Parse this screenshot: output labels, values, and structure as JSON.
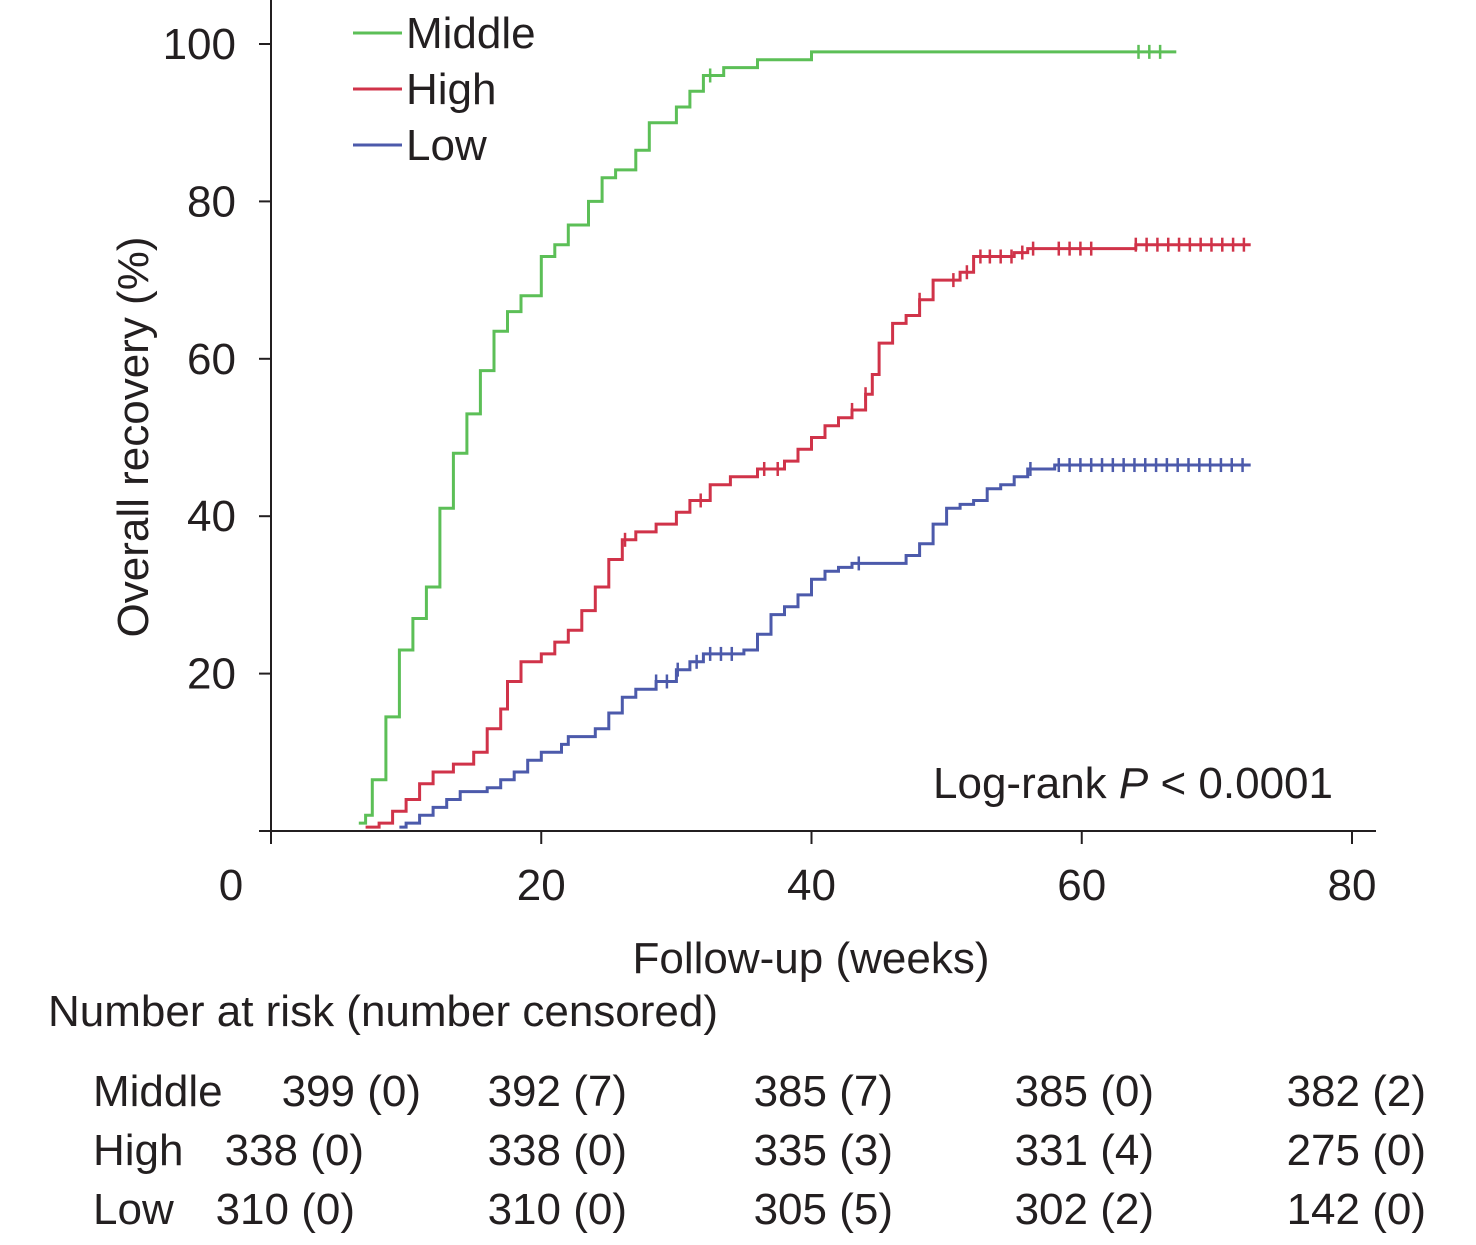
{
  "chart_data": {
    "type": "line",
    "step": true,
    "title": "",
    "xlabel": "Follow-up (weeks)",
    "ylabel": "Overall recovery (%)",
    "xlim": [
      0,
      80
    ],
    "ylim": [
      0,
      100
    ],
    "xticks": [
      "0",
      "20",
      "40",
      "60",
      "80"
    ],
    "yticks": [
      "20",
      "40",
      "60",
      "80",
      "100"
    ],
    "legend_position": "top-left",
    "grid": false,
    "annotation": {
      "prefix": "Log-rank ",
      "p_symbol": "P",
      "suffix": " < 0.0001"
    },
    "series": [
      {
        "name": "Middle",
        "color": "#5cbf57",
        "points": [
          [
            6.5,
            1
          ],
          [
            7,
            1
          ],
          [
            7,
            2
          ],
          [
            7.5,
            2
          ],
          [
            7.5,
            6.5
          ],
          [
            8.5,
            6.5
          ],
          [
            8.5,
            14.5
          ],
          [
            9.5,
            14.5
          ],
          [
            9.5,
            23
          ],
          [
            10.5,
            23
          ],
          [
            10.5,
            27
          ],
          [
            11.5,
            27
          ],
          [
            11.5,
            31
          ],
          [
            12.5,
            31
          ],
          [
            12.5,
            41
          ],
          [
            13.5,
            41
          ],
          [
            13.5,
            48
          ],
          [
            14.5,
            48
          ],
          [
            14.5,
            53
          ],
          [
            15.5,
            53
          ],
          [
            15.5,
            58.5
          ],
          [
            16.5,
            58.5
          ],
          [
            16.5,
            63.5
          ],
          [
            17.5,
            63.5
          ],
          [
            17.5,
            66
          ],
          [
            18.5,
            66
          ],
          [
            18.5,
            68
          ],
          [
            20,
            68
          ],
          [
            20,
            73
          ],
          [
            21,
            73
          ],
          [
            21,
            74.5
          ],
          [
            22,
            74.5
          ],
          [
            22,
            77
          ],
          [
            23.5,
            77
          ],
          [
            23.5,
            80
          ],
          [
            24.5,
            80
          ],
          [
            24.5,
            83
          ],
          [
            25.5,
            83
          ],
          [
            25.5,
            84
          ],
          [
            27,
            84
          ],
          [
            27,
            86.5
          ],
          [
            28,
            86.5
          ],
          [
            28,
            90
          ],
          [
            30,
            90
          ],
          [
            30,
            92
          ],
          [
            31,
            92
          ],
          [
            31,
            94
          ],
          [
            32,
            94
          ],
          [
            32,
            96
          ],
          [
            33.5,
            96
          ],
          [
            33.5,
            97
          ],
          [
            36,
            97
          ],
          [
            36,
            98
          ],
          [
            40,
            98
          ],
          [
            40,
            99
          ],
          [
            67,
            99
          ]
        ],
        "censored_x": [
          32.5,
          64.2,
          65.0,
          65.8
        ]
      },
      {
        "name": "High",
        "color": "#d03349",
        "points": [
          [
            7,
            0.5
          ],
          [
            8,
            0.5
          ],
          [
            8,
            1
          ],
          [
            9,
            1
          ],
          [
            9,
            2.5
          ],
          [
            10,
            2.5
          ],
          [
            10,
            4
          ],
          [
            11,
            4
          ],
          [
            11,
            6
          ],
          [
            12,
            6
          ],
          [
            12,
            7.5
          ],
          [
            13.5,
            7.5
          ],
          [
            13.5,
            8.5
          ],
          [
            15,
            8.5
          ],
          [
            15,
            10
          ],
          [
            16,
            10
          ],
          [
            16,
            13
          ],
          [
            17,
            13
          ],
          [
            17,
            15.5
          ],
          [
            17.5,
            15.5
          ],
          [
            17.5,
            19
          ],
          [
            18.5,
            19
          ],
          [
            18.5,
            21.5
          ],
          [
            20,
            21.5
          ],
          [
            20,
            22.5
          ],
          [
            21,
            22.5
          ],
          [
            21,
            24
          ],
          [
            22,
            24
          ],
          [
            22,
            25.5
          ],
          [
            23,
            25.5
          ],
          [
            23,
            28
          ],
          [
            24,
            28
          ],
          [
            24,
            31
          ],
          [
            25,
            31
          ],
          [
            25,
            34.5
          ],
          [
            26,
            34.5
          ],
          [
            26,
            37
          ],
          [
            27,
            37
          ],
          [
            27,
            38
          ],
          [
            28.5,
            38
          ],
          [
            28.5,
            39
          ],
          [
            30,
            39
          ],
          [
            30,
            40.5
          ],
          [
            31,
            40.5
          ],
          [
            31,
            42
          ],
          [
            32.5,
            42
          ],
          [
            32.5,
            44
          ],
          [
            34,
            44
          ],
          [
            34,
            45
          ],
          [
            36,
            45
          ],
          [
            36,
            46
          ],
          [
            38,
            46
          ],
          [
            38,
            47
          ],
          [
            39,
            47
          ],
          [
            39,
            48.5
          ],
          [
            40,
            48.5
          ],
          [
            40,
            50
          ],
          [
            41,
            50
          ],
          [
            41,
            51.5
          ],
          [
            42,
            51.5
          ],
          [
            42,
            52.5
          ],
          [
            43,
            52.5
          ],
          [
            43,
            53.5
          ],
          [
            44,
            53.5
          ],
          [
            44,
            55.5
          ],
          [
            44.5,
            55.5
          ],
          [
            44.5,
            58
          ],
          [
            45,
            58
          ],
          [
            45,
            62
          ],
          [
            46,
            62
          ],
          [
            46,
            64.5
          ],
          [
            47,
            64.5
          ],
          [
            47,
            65.5
          ],
          [
            48,
            65.5
          ],
          [
            48,
            67.5
          ],
          [
            49,
            67.5
          ],
          [
            49,
            70
          ],
          [
            51,
            70
          ],
          [
            51,
            71
          ],
          [
            52,
            71
          ],
          [
            52,
            73
          ],
          [
            55,
            73
          ],
          [
            55,
            73.5
          ],
          [
            56,
            73.5
          ],
          [
            56,
            74
          ],
          [
            64,
            74
          ],
          [
            64,
            74.5
          ],
          [
            72.5,
            74.5
          ]
        ],
        "censored_x": [
          26.2,
          31.8,
          36.5,
          37.5,
          43.0,
          44.0,
          48.0,
          50.5,
          51.5,
          52.5,
          53.2,
          54.0,
          54.8,
          55.6,
          56.4,
          58.3,
          59.1,
          59.9,
          60.7,
          64.0,
          64.8,
          65.6,
          66.4,
          67.2,
          68.0,
          68.8,
          69.6,
          70.4,
          71.2,
          72.0
        ]
      },
      {
        "name": "Low",
        "color": "#4c5aab",
        "points": [
          [
            9.5,
            0.5
          ],
          [
            10,
            0.5
          ],
          [
            10,
            1
          ],
          [
            11,
            1
          ],
          [
            11,
            2
          ],
          [
            12,
            2
          ],
          [
            12,
            3
          ],
          [
            13,
            3
          ],
          [
            13,
            4
          ],
          [
            14,
            4
          ],
          [
            14,
            5
          ],
          [
            16,
            5
          ],
          [
            16,
            5.5
          ],
          [
            17,
            5.5
          ],
          [
            17,
            6.5
          ],
          [
            18,
            6.5
          ],
          [
            18,
            7.5
          ],
          [
            19,
            7.5
          ],
          [
            19,
            9
          ],
          [
            20,
            9
          ],
          [
            20,
            10
          ],
          [
            21.5,
            10
          ],
          [
            21.5,
            11
          ],
          [
            22,
            11
          ],
          [
            22,
            12
          ],
          [
            24,
            12
          ],
          [
            24,
            13
          ],
          [
            25,
            13
          ],
          [
            25,
            15
          ],
          [
            26,
            15
          ],
          [
            26,
            17
          ],
          [
            27,
            17
          ],
          [
            27,
            18
          ],
          [
            28.5,
            18
          ],
          [
            28.5,
            19
          ],
          [
            30,
            19
          ],
          [
            30,
            20.5
          ],
          [
            31,
            20.5
          ],
          [
            31,
            21.5
          ],
          [
            32,
            21.5
          ],
          [
            32,
            22.5
          ],
          [
            35,
            22.5
          ],
          [
            35,
            23
          ],
          [
            36,
            23
          ],
          [
            36,
            25
          ],
          [
            37,
            25
          ],
          [
            37,
            27.5
          ],
          [
            38,
            27.5
          ],
          [
            38,
            28.5
          ],
          [
            39,
            28.5
          ],
          [
            39,
            30
          ],
          [
            40,
            30
          ],
          [
            40,
            32
          ],
          [
            41,
            32
          ],
          [
            41,
            33
          ],
          [
            42,
            33
          ],
          [
            42,
            33.5
          ],
          [
            43,
            33.5
          ],
          [
            43,
            34
          ],
          [
            47,
            34
          ],
          [
            47,
            35
          ],
          [
            48,
            35
          ],
          [
            48,
            36.5
          ],
          [
            49,
            36.5
          ],
          [
            49,
            39
          ],
          [
            50,
            39
          ],
          [
            50,
            41
          ],
          [
            51,
            41
          ],
          [
            51,
            41.5
          ],
          [
            52,
            41.5
          ],
          [
            52,
            42
          ],
          [
            53,
            42
          ],
          [
            53,
            43.5
          ],
          [
            54,
            43.5
          ],
          [
            54,
            44
          ],
          [
            55,
            44
          ],
          [
            55,
            45
          ],
          [
            56,
            45
          ],
          [
            56,
            46
          ],
          [
            58,
            46
          ],
          [
            58,
            46.5
          ],
          [
            72.5,
            46.5
          ]
        ],
        "censored_x": [
          28.5,
          29.3,
          30.1,
          31.5,
          32.5,
          33.3,
          34.1,
          43.5,
          56.2,
          58.3,
          59.1,
          59.9,
          60.7,
          61.5,
          62.3,
          63.1,
          63.9,
          64.7,
          65.5,
          66.3,
          67.1,
          67.9,
          68.7,
          69.5,
          70.3,
          71.1,
          71.9
        ]
      }
    ]
  },
  "risk_table": {
    "title": "Number at risk (number censored)",
    "rows": [
      {
        "group": "Middle",
        "cells": [
          "399 (0)",
          "392 (7)",
          "385 (7)",
          "385 (0)",
          "382 (2)"
        ]
      },
      {
        "group": "High",
        "cells": [
          "338 (0)",
          "338 (0)",
          "335 (3)",
          "331 (4)",
          "275 (0)"
        ]
      },
      {
        "group": "Low",
        "cells": [
          "310 (0)",
          "310 (0)",
          "305 (5)",
          "302 (2)",
          "142 (0)"
        ]
      }
    ]
  }
}
